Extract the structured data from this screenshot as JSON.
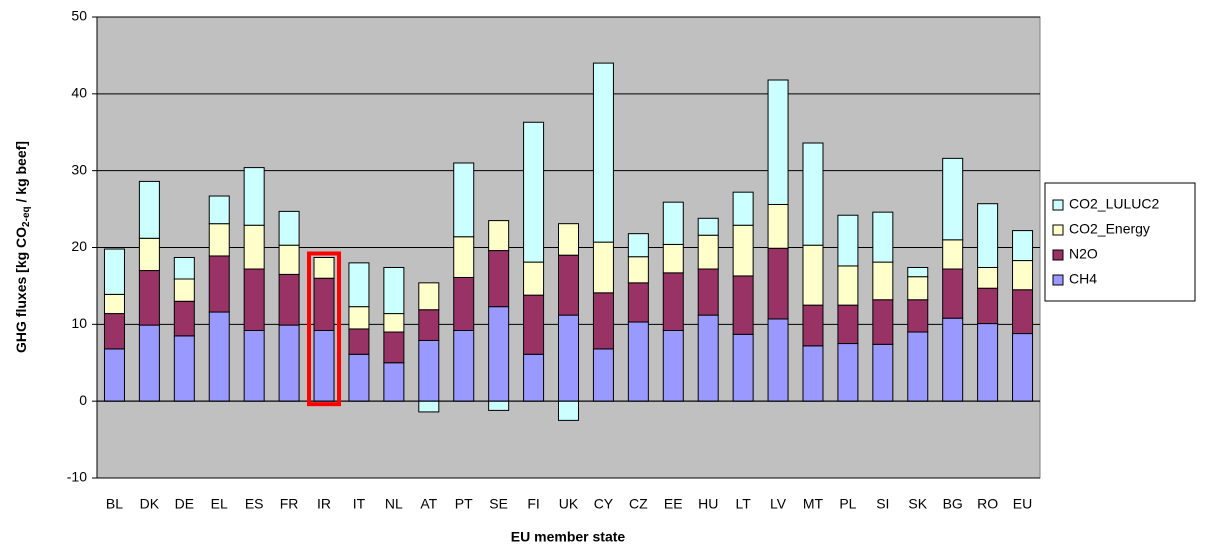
{
  "chart_data": {
    "type": "stacked_bar",
    "y_label": {
      "prefix": "GHG fluxes [kg CO",
      "sub": "2-eq",
      "suffix": " / kg beef]"
    },
    "x_label": "EU member state",
    "categories": [
      "BL",
      "DK",
      "DE",
      "EL",
      "ES",
      "FR",
      "IR",
      "IT",
      "NL",
      "AT",
      "PT",
      "SE",
      "FI",
      "UK",
      "CY",
      "CZ",
      "EE",
      "HU",
      "LT",
      "LV",
      "MT",
      "PL",
      "SI",
      "SK",
      "BG",
      "RO",
      "EU"
    ],
    "series": [
      {
        "name": "CH4",
        "color": "#9999ff",
        "values": [
          6.8,
          9.9,
          8.5,
          11.6,
          9.2,
          9.9,
          9.2,
          6.1,
          5.0,
          7.9,
          9.2,
          12.3,
          6.1,
          11.2,
          6.8,
          10.3,
          9.2,
          11.2,
          8.7,
          10.7,
          7.2,
          7.5,
          7.4,
          9.0,
          10.8,
          10.1,
          8.8
        ]
      },
      {
        "name": "N2O",
        "color": "#993366",
        "values": [
          4.6,
          7.1,
          4.5,
          7.3,
          8.0,
          6.6,
          6.8,
          3.3,
          4.0,
          4.0,
          6.9,
          7.3,
          7.7,
          7.8,
          7.3,
          5.1,
          7.5,
          6.0,
          7.6,
          9.2,
          5.3,
          5.0,
          5.8,
          4.2,
          6.4,
          4.6,
          5.7
        ]
      },
      {
        "name": "CO2_Energy",
        "color": "#ffffcc",
        "values": [
          2.5,
          4.2,
          2.9,
          4.2,
          5.7,
          3.8,
          2.7,
          2.9,
          2.4,
          3.5,
          5.3,
          3.9,
          4.3,
          4.1,
          6.6,
          3.4,
          3.7,
          4.4,
          6.6,
          5.7,
          7.8,
          5.1,
          4.9,
          3.0,
          3.8,
          2.7,
          3.8
        ]
      },
      {
        "name": "CO2_LULUC2",
        "color": "#ccffff",
        "values": [
          5.9,
          7.4,
          2.8,
          3.6,
          7.5,
          4.4,
          0,
          5.7,
          6.0,
          -1.4,
          9.6,
          -1.2,
          18.2,
          -2.5,
          23.3,
          3.0,
          5.5,
          2.2,
          4.3,
          16.2,
          13.3,
          6.6,
          6.5,
          1.2,
          10.6,
          8.3,
          3.9
        ]
      }
    ],
    "ylim": [
      -10,
      50
    ],
    "yticks": [
      -10,
      0,
      10,
      20,
      30,
      40,
      50
    ],
    "grid": true,
    "legend": "right",
    "plot_background": "#c0c0c0",
    "highlight_index": 6,
    "highlight_color": "#ff0000"
  }
}
